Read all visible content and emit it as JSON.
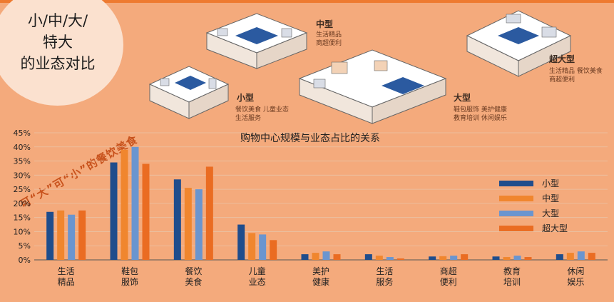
{
  "badge": {
    "title": "小/中/大/\n特大\n的业态对比"
  },
  "slogan": "可“大”可“小”的餐饮美食",
  "illustrations": [
    {
      "label": "小型",
      "desc": "餐饮美食  儿童业态\n生活服务"
    },
    {
      "label": "中型",
      "desc": "生活精品\n商超便利"
    },
    {
      "label": "大型",
      "desc": "鞋包服饰  美护健康\n教育培训  休闲娱乐"
    },
    {
      "label": "超大型",
      "desc": "生活精品  餐饮美食\n商超便利"
    }
  ],
  "colors": {
    "small": "#1f4d8c",
    "medium": "#f0862e",
    "large": "#6a95cf",
    "xlarge": "#ea6c22",
    "background": "#f4aa7c"
  },
  "chart_data": {
    "type": "bar",
    "title": "购物中心规模与业态占比的关系",
    "categories": [
      "生活\n精品",
      "鞋包\n服饰",
      "餐饮\n美食",
      "儿童\n业态",
      "美护\n健康",
      "生活\n服务",
      "商超\n便利",
      "教育\n培训",
      "休闲\n娱乐"
    ],
    "series": [
      {
        "name": "小型",
        "values": [
          17,
          34.5,
          28.5,
          12.5,
          2,
          2,
          1.2,
          1.2,
          2
        ]
      },
      {
        "name": "中型",
        "values": [
          17.5,
          39,
          25.5,
          9.5,
          2.5,
          1.5,
          1.3,
          1,
          2.5
        ]
      },
      {
        "name": "大型",
        "values": [
          16,
          40,
          25,
          9,
          3,
          1,
          1.5,
          1.5,
          3
        ]
      },
      {
        "name": "超大型",
        "values": [
          17.5,
          34,
          33,
          7,
          2,
          0.5,
          2,
          1,
          2.5
        ]
      }
    ],
    "yticks": [
      "0%",
      "5%",
      "10%",
      "15%",
      "20%",
      "25%",
      "30%",
      "35%",
      "40%",
      "45%"
    ],
    "ylim": [
      0,
      45
    ],
    "grid": true,
    "legend": "right"
  }
}
